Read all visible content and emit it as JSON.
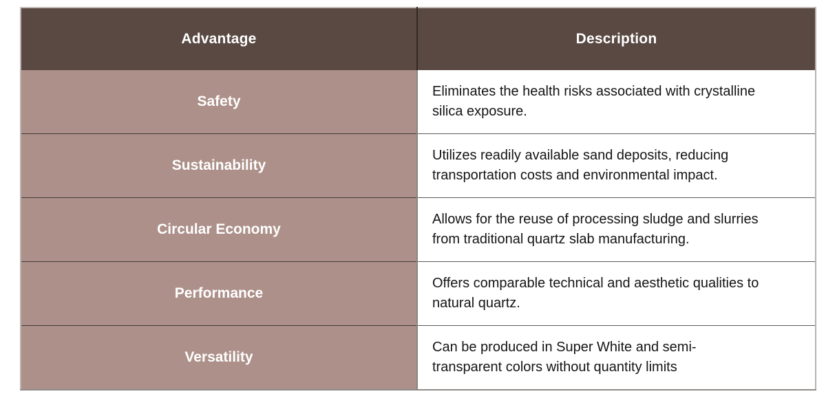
{
  "table": {
    "columns": [
      {
        "label": "Advantage"
      },
      {
        "label": "Description"
      }
    ],
    "rows": [
      {
        "advantage": "Safety",
        "description": "Eliminates the health risks associated with crystalline\nsilica exposure."
      },
      {
        "advantage": "Sustainability",
        "description": "Utilizes readily available sand deposits, reducing\ntransportation costs and environmental impact."
      },
      {
        "advantage": "Circular Economy",
        "description": "Allows for the reuse of processing sludge and slurries\nfrom traditional quartz slab manufacturing."
      },
      {
        "advantage": "Performance",
        "description": "Offers comparable technical and aesthetic qualities to\nnatural quartz."
      },
      {
        "advantage": "Versatility",
        "description": "Can be produced in Super White and semi-\ntransparent colors without quantity limits"
      }
    ],
    "colors": {
      "header_bg": "#594942",
      "header_text": "#FFFFFF",
      "advantage_bg": "#AC9089",
      "advantage_text": "#FFFFFF",
      "description_bg": "#FFFFFF",
      "description_text": "#141414",
      "row_divider": "#433A36",
      "column_divider_header": "#342A22",
      "column_divider_body": "#8A8582",
      "outer_border": "#B7B2AF"
    }
  }
}
